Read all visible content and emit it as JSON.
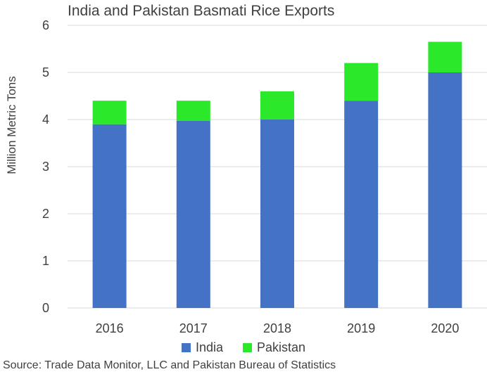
{
  "chart_data": {
    "type": "bar",
    "stacked": true,
    "title": "India and Pakistan Basmati Rice Exports",
    "ylabel": "Million Metric Tons",
    "xlabel": "",
    "categories": [
      "2016",
      "2017",
      "2018",
      "2019",
      "2020"
    ],
    "ylim": [
      0,
      6
    ],
    "yticks": [
      0,
      1,
      2,
      3,
      4,
      5,
      6
    ],
    "grid": true,
    "legend_position": "bottom",
    "series": [
      {
        "name": "India",
        "color": "#4472C4",
        "values": [
          3.9,
          3.97,
          4.0,
          4.4,
          5.0
        ]
      },
      {
        "name": "Pakistan",
        "color": "#2BE82B",
        "values": [
          0.5,
          0.43,
          0.6,
          0.8,
          0.65
        ]
      }
    ]
  },
  "source_note": "Source: Trade Data Monitor, LLC and Pakistan Bureau of Statistics"
}
